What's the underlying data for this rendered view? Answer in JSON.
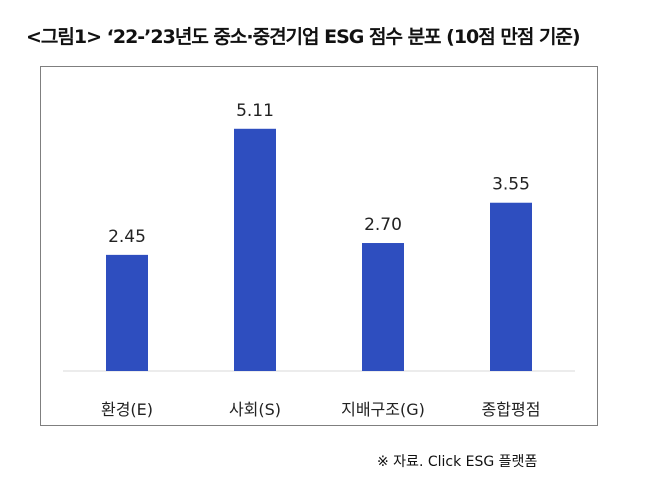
{
  "title": "<그림1> ‘22-’23년도 중소·중견기업 ESG 점수 분포 (10점 만점 기준)",
  "source": "※ 자료. Click ESG 플랫폼",
  "chart_data": {
    "type": "bar",
    "categories": [
      "환경(E)",
      "사회(S)",
      "지배구조(G)",
      "종합평점"
    ],
    "series": [
      {
        "values": [
          2.45,
          5.11,
          2.7,
          3.55
        ],
        "labels": [
          "2.45",
          "5.11",
          "2.70",
          "3.55"
        ]
      }
    ],
    "ylim": [
      0,
      5.5
    ],
    "grid": false,
    "color": "#2e4ebf",
    "axis_color": "#d9d9d9",
    "xlabel": "",
    "ylabel": ""
  }
}
